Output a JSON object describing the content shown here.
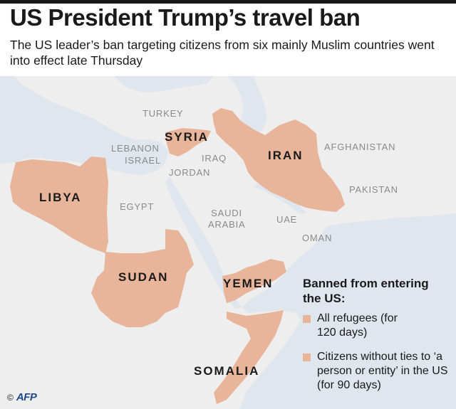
{
  "title": "US President Trump’s travel ban",
  "subtitle": "The US leader’s ban targeting citizens from six mainly Muslim countries went into effect late Thursday",
  "colors": {
    "banned": "#e8b49a",
    "land": "#eeeeee",
    "sea": "#dfe6ee",
    "border": "#ffffff"
  },
  "banned_countries": [
    "SYRIA",
    "IRAN",
    "LIBYA",
    "SUDAN",
    "YEMEN",
    "SOMALIA"
  ],
  "other_countries": {
    "turkey": "TURKEY",
    "lebanon": "LEBANON",
    "israel": "ISRAEL",
    "iraq": "IRAQ",
    "jordan": "JORDAN",
    "egypt": "EGYPT",
    "saudi": "SAUDI ARABIA",
    "uae": "UAE",
    "oman": "OMAN",
    "afghanistan": "AFGHANISTAN",
    "pakistan": "PAKISTAN"
  },
  "legend": {
    "title": "Banned from entering the US:",
    "items": [
      "All refugees (for 120 days)",
      "Citizens without ties to ‘a person or entity’ in the US (for 90 days)"
    ]
  },
  "credit": {
    "copyright": "©",
    "logo": "AFP"
  }
}
